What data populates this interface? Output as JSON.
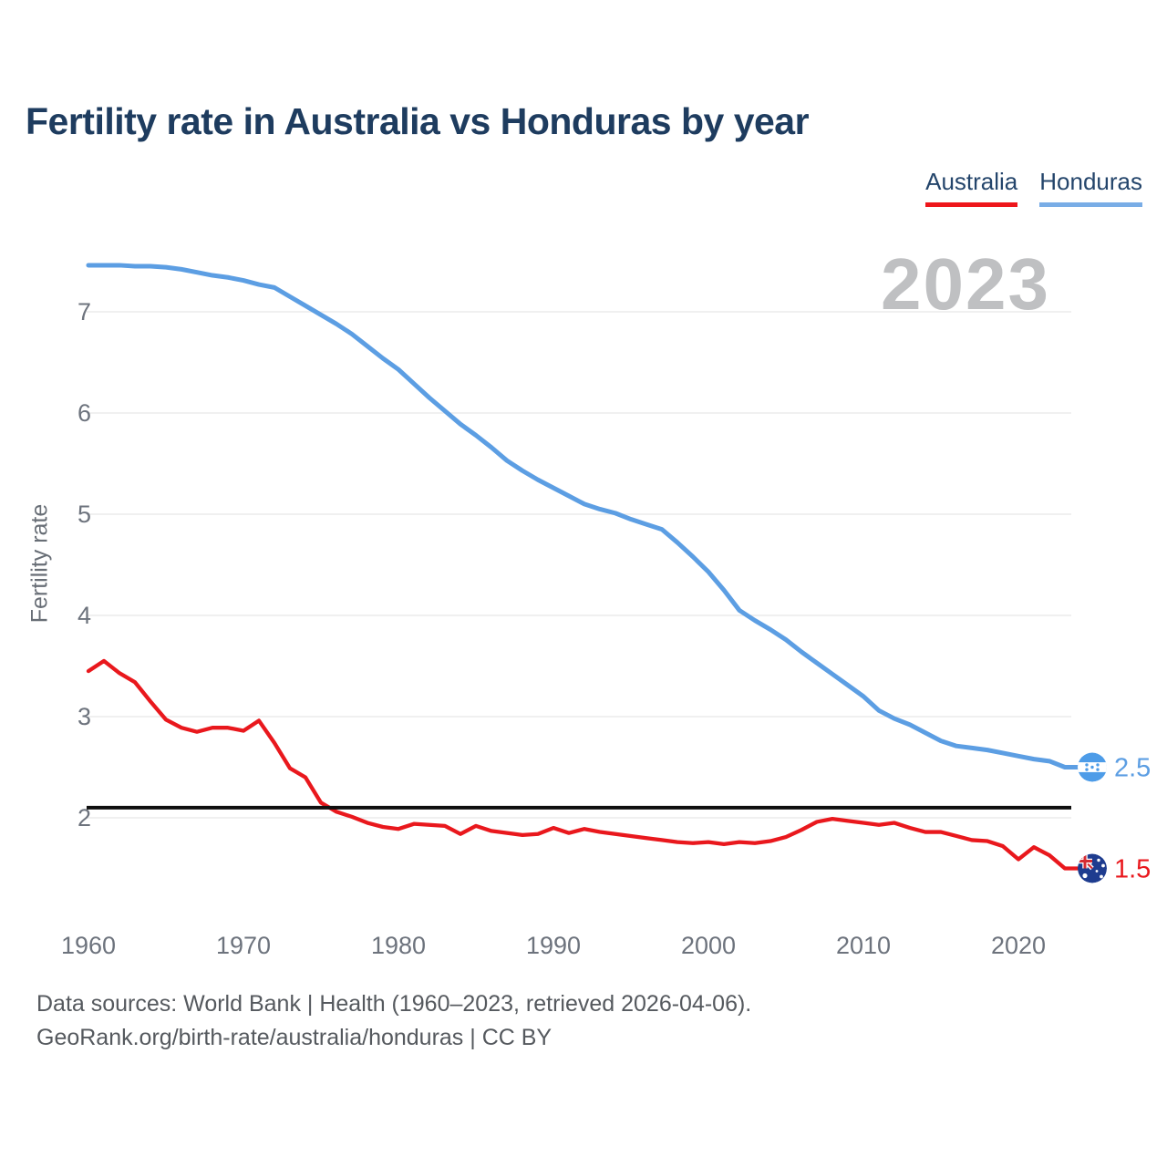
{
  "header": {
    "title": "Fertility rate in Australia vs Honduras by year"
  },
  "legend": {
    "items": [
      {
        "label": "Australia",
        "color": "#ee161b"
      },
      {
        "label": "Honduras",
        "color": "#79ade6"
      }
    ]
  },
  "watermark": "2023",
  "footer": {
    "line1": "Data sources: World Bank | Health (1960–2023, retrieved 2026-04-06).",
    "line2": "GeoRank.org/birth-rate/australia/honduras | CC BY"
  },
  "chart_data": {
    "type": "line",
    "title": "Fertility rate in Australia vs Honduras by year",
    "xlabel": "",
    "ylabel": "Fertility rate",
    "legend_position": "top-right",
    "grid": "horizontal",
    "xlim": [
      1960,
      2023
    ],
    "ylim": [
      1.4,
      7.6
    ],
    "xticks": [
      1960,
      1970,
      1980,
      1990,
      2000,
      2010,
      2020
    ],
    "xtick_labels": [
      "1960",
      "1970",
      "1980",
      "1990",
      "2000",
      "2010",
      "2020"
    ],
    "yticks": [
      7,
      6,
      5,
      4,
      3,
      2
    ],
    "ytick_labels": [
      "7",
      "6",
      "5",
      "4",
      "3",
      "2"
    ],
    "reference_line": {
      "value": 2.1,
      "color": "#0f0f0f"
    },
    "x": [
      1960,
      1961,
      1962,
      1963,
      1964,
      1965,
      1966,
      1967,
      1968,
      1969,
      1970,
      1971,
      1972,
      1973,
      1974,
      1975,
      1976,
      1977,
      1978,
      1979,
      1980,
      1981,
      1982,
      1983,
      1984,
      1985,
      1986,
      1987,
      1988,
      1989,
      1990,
      1991,
      1992,
      1993,
      1994,
      1995,
      1996,
      1997,
      1998,
      1999,
      2000,
      2001,
      2002,
      2003,
      2004,
      2005,
      2006,
      2007,
      2008,
      2009,
      2010,
      2011,
      2012,
      2013,
      2014,
      2015,
      2016,
      2017,
      2018,
      2019,
      2020,
      2021,
      2022,
      2023
    ],
    "series": [
      {
        "name": "Honduras",
        "color": "#5c9ee3",
        "end_label": "2.5",
        "end_value": 2.5,
        "values": [
          7.46,
          7.46,
          7.46,
          7.45,
          7.45,
          7.44,
          7.42,
          7.39,
          7.36,
          7.34,
          7.31,
          7.27,
          7.24,
          7.15,
          7.06,
          6.97,
          6.88,
          6.78,
          6.66,
          6.54,
          6.43,
          6.29,
          6.15,
          6.02,
          5.89,
          5.78,
          5.66,
          5.53,
          5.43,
          5.34,
          5.26,
          5.18,
          5.1,
          5.05,
          5.01,
          4.95,
          4.9,
          4.85,
          4.72,
          4.58,
          4.43,
          4.25,
          4.05,
          3.95,
          3.86,
          3.76,
          3.64,
          3.53,
          3.42,
          3.31,
          3.2,
          3.06,
          2.98,
          2.92,
          2.84,
          2.76,
          2.71,
          2.69,
          2.67,
          2.64,
          2.61,
          2.58,
          2.56,
          2.5
        ]
      },
      {
        "name": "Australia",
        "color": "#e9181d",
        "end_label": "1.5",
        "end_value": 1.5,
        "values": [
          3.45,
          3.55,
          3.43,
          3.34,
          3.15,
          2.97,
          2.89,
          2.85,
          2.89,
          2.89,
          2.86,
          2.96,
          2.74,
          2.49,
          2.4,
          2.15,
          2.06,
          2.01,
          1.95,
          1.91,
          1.89,
          1.94,
          1.93,
          1.92,
          1.84,
          1.92,
          1.87,
          1.85,
          1.83,
          1.84,
          1.9,
          1.85,
          1.89,
          1.86,
          1.84,
          1.82,
          1.8,
          1.78,
          1.76,
          1.75,
          1.76,
          1.74,
          1.76,
          1.75,
          1.77,
          1.81,
          1.88,
          1.96,
          1.99,
          1.97,
          1.95,
          1.93,
          1.95,
          1.9,
          1.86,
          1.86,
          1.82,
          1.78,
          1.77,
          1.72,
          1.59,
          1.71,
          1.63,
          1.5
        ]
      }
    ]
  }
}
